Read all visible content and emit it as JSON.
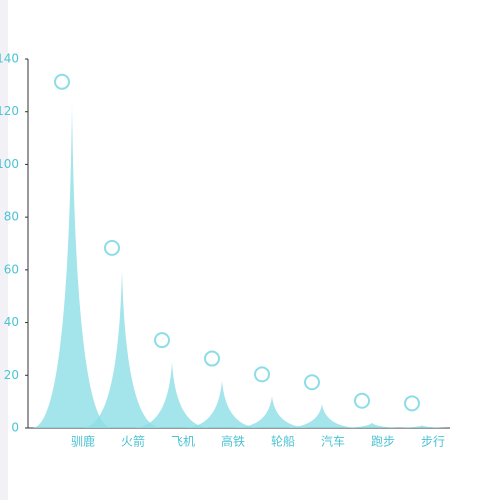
{
  "chart_data": {
    "type": "pictorial-spike",
    "categories": [
      "驯鹿",
      "火箭",
      "飞机",
      "高铁",
      "轮船",
      "汽车",
      "跑步",
      "步行"
    ],
    "values": [
      123,
      60,
      25,
      18,
      12,
      9,
      2,
      1
    ],
    "color": "#8ddde6",
    "ylim": [
      0,
      140
    ],
    "yticks": [
      0,
      20,
      40,
      60,
      80,
      100,
      120,
      140
    ]
  }
}
